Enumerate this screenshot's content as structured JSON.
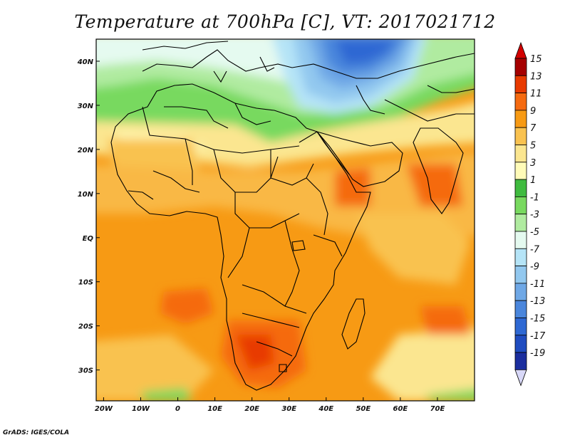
{
  "title": "Temperature at 700hPa [C], VT: 2017021712",
  "credit": "GrADS: IGES/COLA",
  "map": {
    "lon_range": [
      -22,
      80
    ],
    "lat_range": [
      -37,
      45
    ],
    "lon_ticks": [
      {
        "value": -20,
        "label": "20W"
      },
      {
        "value": -10,
        "label": "10W"
      },
      {
        "value": 0,
        "label": "0"
      },
      {
        "value": 10,
        "label": "10E"
      },
      {
        "value": 20,
        "label": "20E"
      },
      {
        "value": 30,
        "label": "30E"
      },
      {
        "value": 40,
        "label": "40E"
      },
      {
        "value": 50,
        "label": "50E"
      },
      {
        "value": 60,
        "label": "60E"
      },
      {
        "value": 70,
        "label": "70E"
      }
    ],
    "lat_ticks": [
      {
        "value": 40,
        "label": "40N"
      },
      {
        "value": 30,
        "label": "30N"
      },
      {
        "value": 20,
        "label": "20N"
      },
      {
        "value": 10,
        "label": "10N"
      },
      {
        "value": 0,
        "label": "EQ"
      },
      {
        "value": -10,
        "label": "10S"
      },
      {
        "value": -20,
        "label": "20S"
      },
      {
        "value": -30,
        "label": "30S"
      }
    ]
  },
  "colorbar": {
    "levels": [
      {
        "label": "15",
        "color": "#a50000"
      },
      {
        "label": "13",
        "color": "#e83a00"
      },
      {
        "label": "11",
        "color": "#f56a10"
      },
      {
        "label": "9",
        "color": "#f79a14"
      },
      {
        "label": "7",
        "color": "#f9c250"
      },
      {
        "label": "5",
        "color": "#fbe690"
      },
      {
        "label": "3",
        "color": "#fffbb8"
      },
      {
        "label": "1",
        "color": "#3fbb3f"
      },
      {
        "label": "-1",
        "color": "#78d95f"
      },
      {
        "label": "-3",
        "color": "#b0eba0"
      },
      {
        "label": "-5",
        "color": "#e5faf0"
      },
      {
        "label": "-7",
        "color": "#b5e4f7"
      },
      {
        "label": "-9",
        "color": "#92c8ef"
      },
      {
        "label": "-11",
        "color": "#6fa8e6"
      },
      {
        "label": "-13",
        "color": "#4a86dc"
      },
      {
        "label": "-15",
        "color": "#2e68d3"
      },
      {
        "label": "-17",
        "color": "#1f4cc0"
      },
      {
        "label": "-19",
        "color": "#1b2e9e"
      }
    ],
    "top_arrow_color": "#d20000",
    "bottom_arrow_color": "#d8d8f8"
  }
}
